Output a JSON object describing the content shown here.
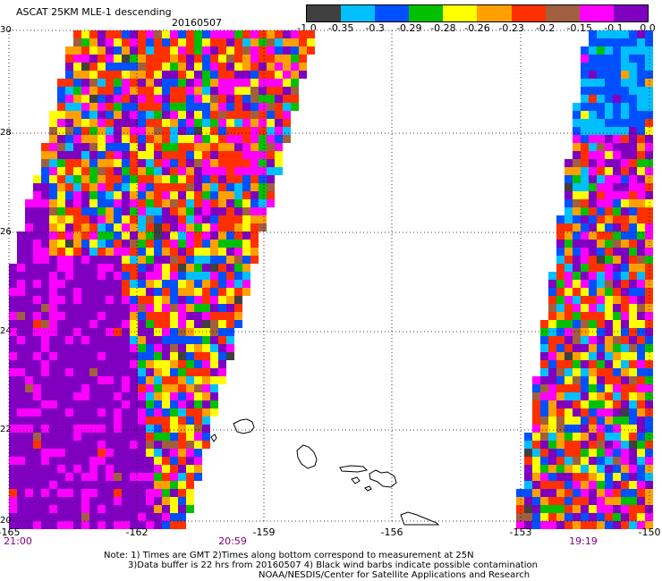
{
  "title": "ASCAT 25KM MLE-1 descending",
  "date": "20160507",
  "colorbar": {
    "labels": [
      "-1.0",
      "-0.35",
      "-0.3",
      "-0.29",
      "-0.28",
      "-0.26",
      "-0.23",
      "-0.2",
      "-0.15",
      "-0.1",
      "0.0"
    ],
    "colors": [
      "#404040",
      "#00bfff",
      "#0050ff",
      "#00c000",
      "#ffff00",
      "#ffa000",
      "#ff3000",
      "#a06040",
      "#ff00ff",
      "#8000c0"
    ]
  },
  "map": {
    "lon_labels": [
      "-165",
      "-162",
      "-159",
      "-156",
      "-153",
      "-150"
    ],
    "lat_labels": [
      "30",
      "28",
      "26",
      "24",
      "22",
      "20"
    ],
    "time_labels": [
      "21:00",
      "20:59",
      "19:19"
    ]
  },
  "notes": {
    "line1": "Note: 1) Times are GMT 2)Times along bottom correspond to measurement at 25N",
    "line2": "3)Data buffer is 22 hrs from 20160507 4) Black wind barbs indicate possible contamination",
    "line3": "NOAA/NESDIS/Center for Satellite Applications and Research"
  }
}
